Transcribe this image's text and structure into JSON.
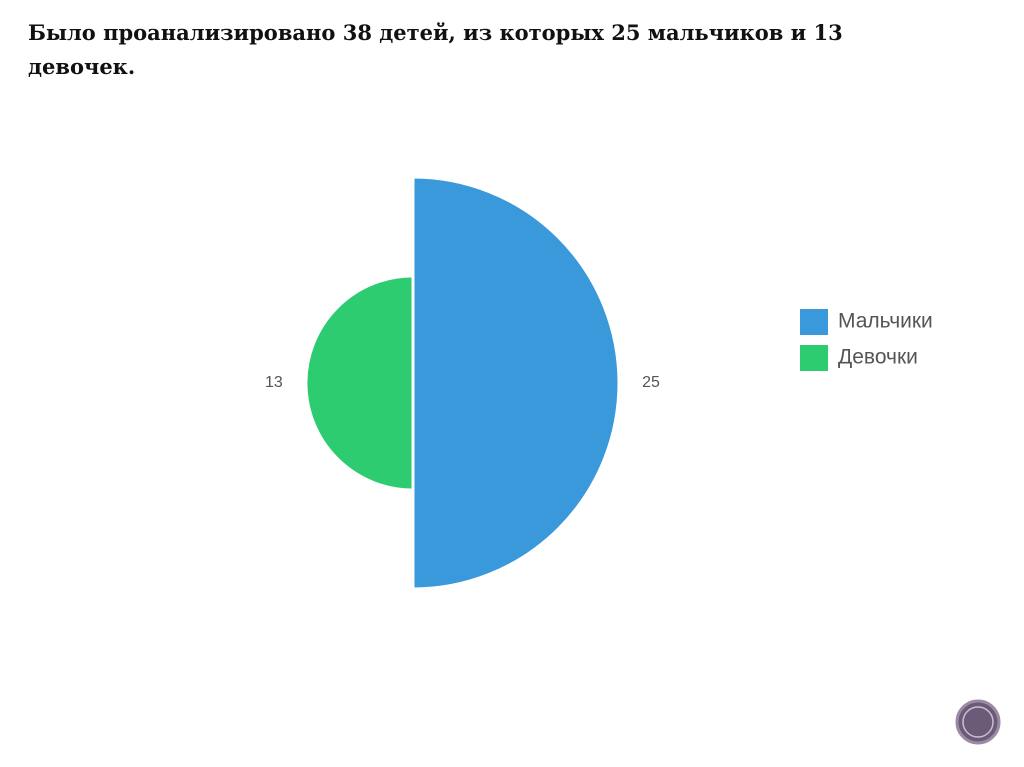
{
  "chart_data": {
    "type": "rose",
    "title": "Было проанализировано 38 детей, из которых 25 мальчиков и 13 девочек.",
    "series": [
      {
        "name": "Мальчики",
        "color": "#3a99db",
        "values": [
          25
        ]
      },
      {
        "name": "Девочки",
        "color": "#2ecc71",
        "values": [
          13
        ]
      }
    ],
    "legend": "right"
  }
}
